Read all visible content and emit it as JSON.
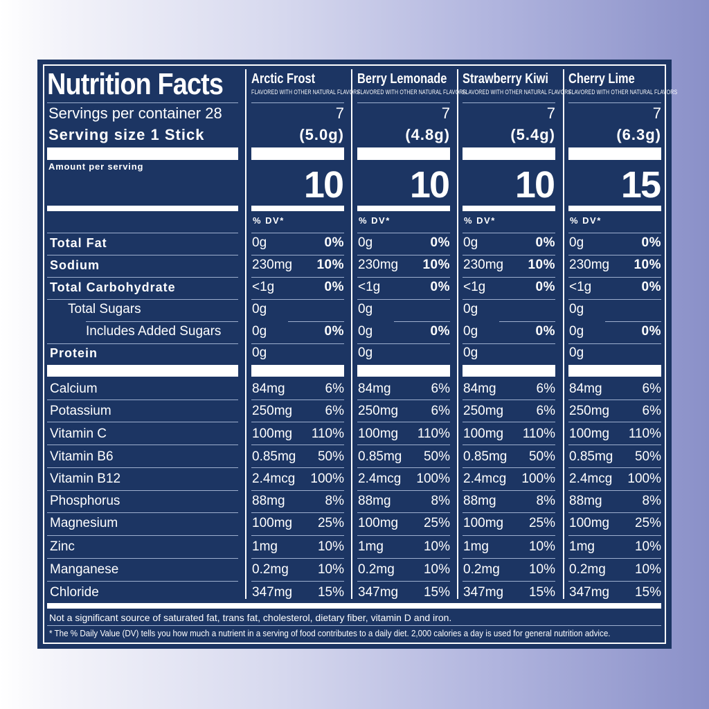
{
  "panel": {
    "title": "Nutrition Facts",
    "servings_per_container_label": "Servings per container 28",
    "serving_size_label": "Serving size  1 Stick",
    "amount_per_serving": "Amount per serving",
    "dv_header": "% DV*",
    "colors": {
      "panel": "#1c3563",
      "text": "#ffffff",
      "background_start": "#ffffff",
      "background_end": "#8a90c8"
    }
  },
  "flavors": [
    {
      "name": "Arctic Frost",
      "subtitle": "FLAVORED WITH OTHER NATURAL FLAVORS",
      "servings": "7",
      "serving_weight": "(5.0g)",
      "calories": "10"
    },
    {
      "name": "Berry Lemonade",
      "subtitle": "FLAVORED WITH OTHER NATURAL FLAVORS",
      "servings": "7",
      "serving_weight": "(4.8g)",
      "calories": "10"
    },
    {
      "name": "Strawberry Kiwi",
      "subtitle": "FLAVORED WITH OTHER NATURAL FLAVORS",
      "servings": "7",
      "serving_weight": "(5.4g)",
      "calories": "10"
    },
    {
      "name": "Cherry Lime",
      "subtitle": "FLAVORED WITH OTHER NATURAL FLAVORS",
      "servings": "7",
      "serving_weight": "(6.3g)",
      "calories": "15"
    }
  ],
  "nutrients": [
    {
      "label": "Total Fat",
      "amount": "0g",
      "dv": "0%"
    },
    {
      "label": "Sodium",
      "amount": "230mg",
      "dv": "10%"
    },
    {
      "label": "Total Carbohydrate",
      "amount": "<1g",
      "dv": "0%"
    },
    {
      "label": "Total Sugars",
      "amount": "0g",
      "dv": ""
    },
    {
      "label": "Includes Added Sugars",
      "amount": "0g",
      "dv": "0%"
    },
    {
      "label": "Protein",
      "amount": "0g",
      "dv": ""
    }
  ],
  "micros": [
    {
      "label": "Calcium",
      "amount": "84mg",
      "dv": "6%"
    },
    {
      "label": "Potassium",
      "amount": "250mg",
      "dv": "6%"
    },
    {
      "label": "Vitamin C",
      "amount": "100mg",
      "dv": "110%"
    },
    {
      "label": "Vitamin B6",
      "amount": "0.85mg",
      "dv": "50%"
    },
    {
      "label": "Vitamin B12",
      "amount": "2.4mcg",
      "dv": "100%"
    },
    {
      "label": "Phosphorus",
      "amount": "88mg",
      "dv": "8%"
    },
    {
      "label": "Magnesium",
      "amount": "100mg",
      "dv": "25%"
    },
    {
      "label": "Zinc",
      "amount": "1mg",
      "dv": "10%"
    },
    {
      "label": "Manganese",
      "amount": "0.2mg",
      "dv": "10%"
    },
    {
      "label": "Chloride",
      "amount": "347mg",
      "dv": "15%"
    }
  ],
  "footnotes": {
    "not_significant": "Not a significant source of saturated fat, trans fat, cholesterol, dietary fiber, vitamin D and iron.",
    "daily_value": "* The % Daily Value (DV) tells you how much a nutrient in a serving of food contributes to a daily diet. 2,000 calories a day is used for general nutrition advice."
  }
}
